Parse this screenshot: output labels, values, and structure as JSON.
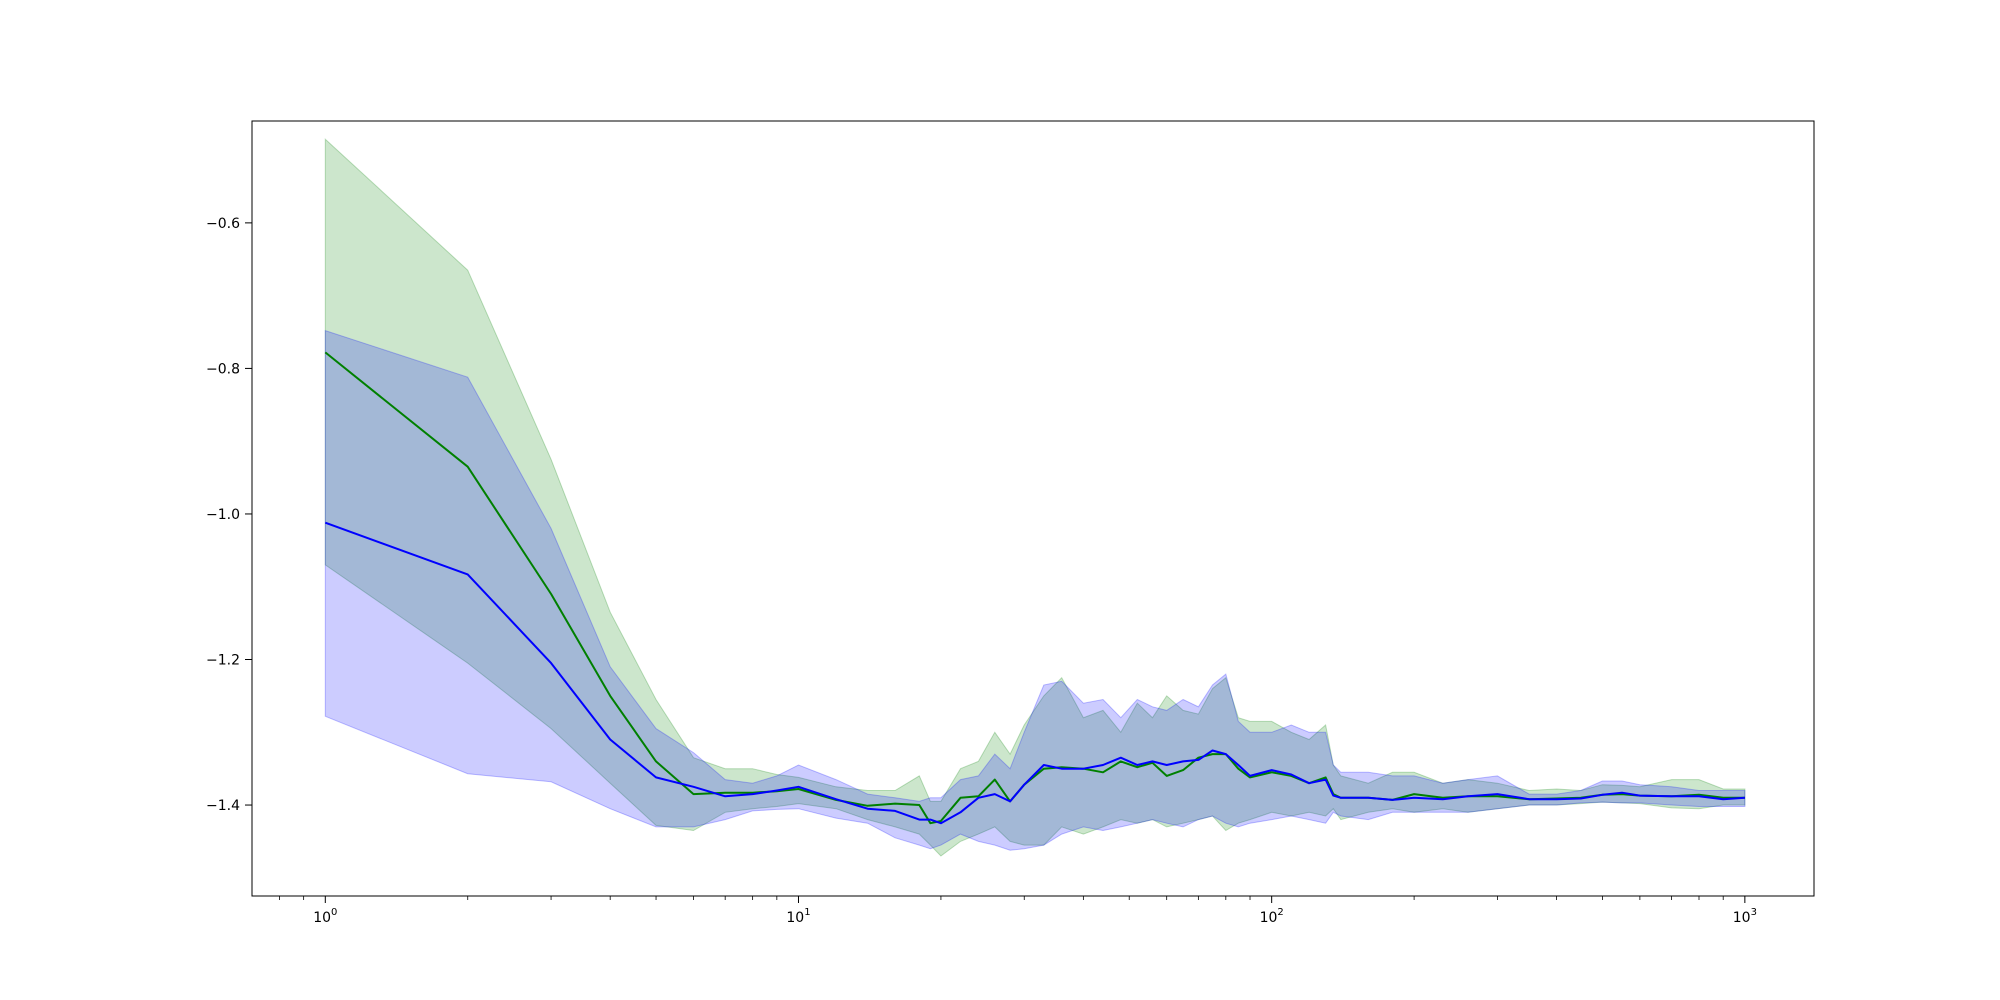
{
  "chart_data": {
    "type": "line",
    "title": "",
    "xlabel": "",
    "ylabel": "",
    "xscale": "log",
    "xlim": [
      0.7,
      1400
    ],
    "ylim": [
      -1.525,
      -0.46
    ],
    "grid": false,
    "legend": "none",
    "x_ticks": [
      {
        "value": 1,
        "base": "10",
        "exp": "0"
      },
      {
        "value": 10,
        "base": "10",
        "exp": "1"
      },
      {
        "value": 100,
        "base": "10",
        "exp": "2"
      },
      {
        "value": 1000,
        "base": "10",
        "exp": "3"
      }
    ],
    "y_ticks": [
      {
        "value": -0.6,
        "label": "−0.6"
      },
      {
        "value": -0.8,
        "label": "−0.8"
      },
      {
        "value": -1.0,
        "label": "−1.0"
      },
      {
        "value": -1.2,
        "label": "−1.2"
      },
      {
        "value": -1.4,
        "label": "−1.4"
      }
    ],
    "series": [
      {
        "color": "#008000",
        "band_color": "#008000",
        "x": [
          1,
          2,
          3,
          4,
          5,
          6,
          7,
          8,
          9,
          10,
          12,
          14,
          16,
          18,
          19,
          20,
          22,
          24,
          26,
          28,
          30,
          33,
          36,
          40,
          44,
          48,
          52,
          56,
          60,
          65,
          70,
          75,
          80,
          85,
          90,
          100,
          110,
          120,
          130,
          135,
          140,
          160,
          180,
          200,
          230,
          260,
          300,
          350,
          400,
          450,
          500,
          550,
          600,
          700,
          800,
          900,
          1000
        ],
        "y": [
          -0.778,
          -0.935,
          -1.11,
          -1.25,
          -1.34,
          -1.385,
          -1.383,
          -1.383,
          -1.381,
          -1.378,
          -1.393,
          -1.401,
          -1.398,
          -1.4,
          -1.425,
          -1.422,
          -1.39,
          -1.388,
          -1.365,
          -1.395,
          -1.372,
          -1.35,
          -1.348,
          -1.35,
          -1.355,
          -1.34,
          -1.348,
          -1.342,
          -1.36,
          -1.352,
          -1.335,
          -1.33,
          -1.33,
          -1.35,
          -1.362,
          -1.355,
          -1.36,
          -1.37,
          -1.362,
          -1.385,
          -1.39,
          -1.39,
          -1.393,
          -1.385,
          -1.39,
          -1.388,
          -1.388,
          -1.392,
          -1.391,
          -1.39,
          -1.386,
          -1.385,
          -1.387,
          -1.388,
          -1.386,
          -1.39,
          -1.39
        ],
        "lower": [
          -1.07,
          -1.205,
          -1.295,
          -1.37,
          -1.428,
          -1.435,
          -1.41,
          -1.405,
          -1.402,
          -1.398,
          -1.405,
          -1.42,
          -1.43,
          -1.44,
          -1.455,
          -1.47,
          -1.45,
          -1.44,
          -1.43,
          -1.45,
          -1.455,
          -1.455,
          -1.43,
          -1.44,
          -1.43,
          -1.42,
          -1.425,
          -1.42,
          -1.43,
          -1.425,
          -1.42,
          -1.415,
          -1.435,
          -1.425,
          -1.42,
          -1.41,
          -1.415,
          -1.41,
          -1.415,
          -1.405,
          -1.42,
          -1.41,
          -1.405,
          -1.41,
          -1.405,
          -1.41,
          -1.405,
          -1.4,
          -1.4,
          -1.398,
          -1.396,
          -1.397,
          -1.398,
          -1.404,
          -1.405,
          -1.4,
          -1.4
        ],
        "upper": [
          -0.485,
          -0.665,
          -0.925,
          -1.135,
          -1.255,
          -1.335,
          -1.35,
          -1.35,
          -1.358,
          -1.362,
          -1.375,
          -1.38,
          -1.38,
          -1.36,
          -1.395,
          -1.395,
          -1.35,
          -1.34,
          -1.3,
          -1.33,
          -1.29,
          -1.25,
          -1.225,
          -1.28,
          -1.27,
          -1.3,
          -1.26,
          -1.28,
          -1.25,
          -1.27,
          -1.275,
          -1.24,
          -1.225,
          -1.28,
          -1.285,
          -1.285,
          -1.3,
          -1.31,
          -1.29,
          -1.345,
          -1.36,
          -1.37,
          -1.355,
          -1.355,
          -1.37,
          -1.365,
          -1.37,
          -1.38,
          -1.378,
          -1.38,
          -1.372,
          -1.373,
          -1.375,
          -1.365,
          -1.365,
          -1.378,
          -1.378
        ]
      },
      {
        "color": "#0000ff",
        "band_color": "#0000ff",
        "x": [
          1,
          2,
          3,
          4,
          5,
          6,
          7,
          8,
          9,
          10,
          12,
          14,
          16,
          18,
          19,
          20,
          22,
          24,
          26,
          28,
          30,
          33,
          36,
          40,
          44,
          48,
          52,
          56,
          60,
          65,
          70,
          75,
          80,
          85,
          90,
          100,
          110,
          120,
          130,
          135,
          140,
          160,
          180,
          200,
          230,
          260,
          300,
          350,
          400,
          450,
          500,
          550,
          600,
          700,
          800,
          900,
          1000
        ],
        "y": [
          -1.012,
          -1.083,
          -1.205,
          -1.31,
          -1.362,
          -1.375,
          -1.388,
          -1.385,
          -1.38,
          -1.375,
          -1.392,
          -1.405,
          -1.408,
          -1.42,
          -1.42,
          -1.425,
          -1.41,
          -1.39,
          -1.385,
          -1.395,
          -1.372,
          -1.345,
          -1.35,
          -1.35,
          -1.345,
          -1.335,
          -1.345,
          -1.34,
          -1.345,
          -1.34,
          -1.338,
          -1.325,
          -1.33,
          -1.345,
          -1.36,
          -1.352,
          -1.358,
          -1.37,
          -1.365,
          -1.387,
          -1.39,
          -1.39,
          -1.393,
          -1.39,
          -1.392,
          -1.388,
          -1.385,
          -1.392,
          -1.392,
          -1.391,
          -1.386,
          -1.383,
          -1.387,
          -1.388,
          -1.388,
          -1.392,
          -1.39
        ],
        "lower": [
          -1.278,
          -1.357,
          -1.368,
          -1.405,
          -1.43,
          -1.43,
          -1.42,
          -1.408,
          -1.406,
          -1.405,
          -1.418,
          -1.425,
          -1.445,
          -1.455,
          -1.46,
          -1.455,
          -1.44,
          -1.45,
          -1.455,
          -1.462,
          -1.46,
          -1.455,
          -1.44,
          -1.43,
          -1.435,
          -1.43,
          -1.425,
          -1.42,
          -1.425,
          -1.43,
          -1.42,
          -1.415,
          -1.425,
          -1.43,
          -1.425,
          -1.42,
          -1.415,
          -1.42,
          -1.425,
          -1.41,
          -1.415,
          -1.42,
          -1.41,
          -1.41,
          -1.41,
          -1.41,
          -1.405,
          -1.4,
          -1.4,
          -1.397,
          -1.396,
          -1.397,
          -1.397,
          -1.4,
          -1.402,
          -1.402,
          -1.402
        ],
        "upper": [
          -0.748,
          -0.812,
          -1.02,
          -1.21,
          -1.295,
          -1.328,
          -1.365,
          -1.37,
          -1.36,
          -1.345,
          -1.365,
          -1.385,
          -1.39,
          -1.395,
          -1.39,
          -1.39,
          -1.365,
          -1.36,
          -1.33,
          -1.35,
          -1.3,
          -1.235,
          -1.23,
          -1.26,
          -1.255,
          -1.28,
          -1.255,
          -1.265,
          -1.27,
          -1.255,
          -1.265,
          -1.235,
          -1.22,
          -1.285,
          -1.3,
          -1.3,
          -1.29,
          -1.3,
          -1.3,
          -1.345,
          -1.355,
          -1.355,
          -1.36,
          -1.36,
          -1.37,
          -1.365,
          -1.36,
          -1.385,
          -1.385,
          -1.38,
          -1.367,
          -1.367,
          -1.372,
          -1.375,
          -1.38,
          -1.38,
          -1.38
        ]
      }
    ]
  }
}
